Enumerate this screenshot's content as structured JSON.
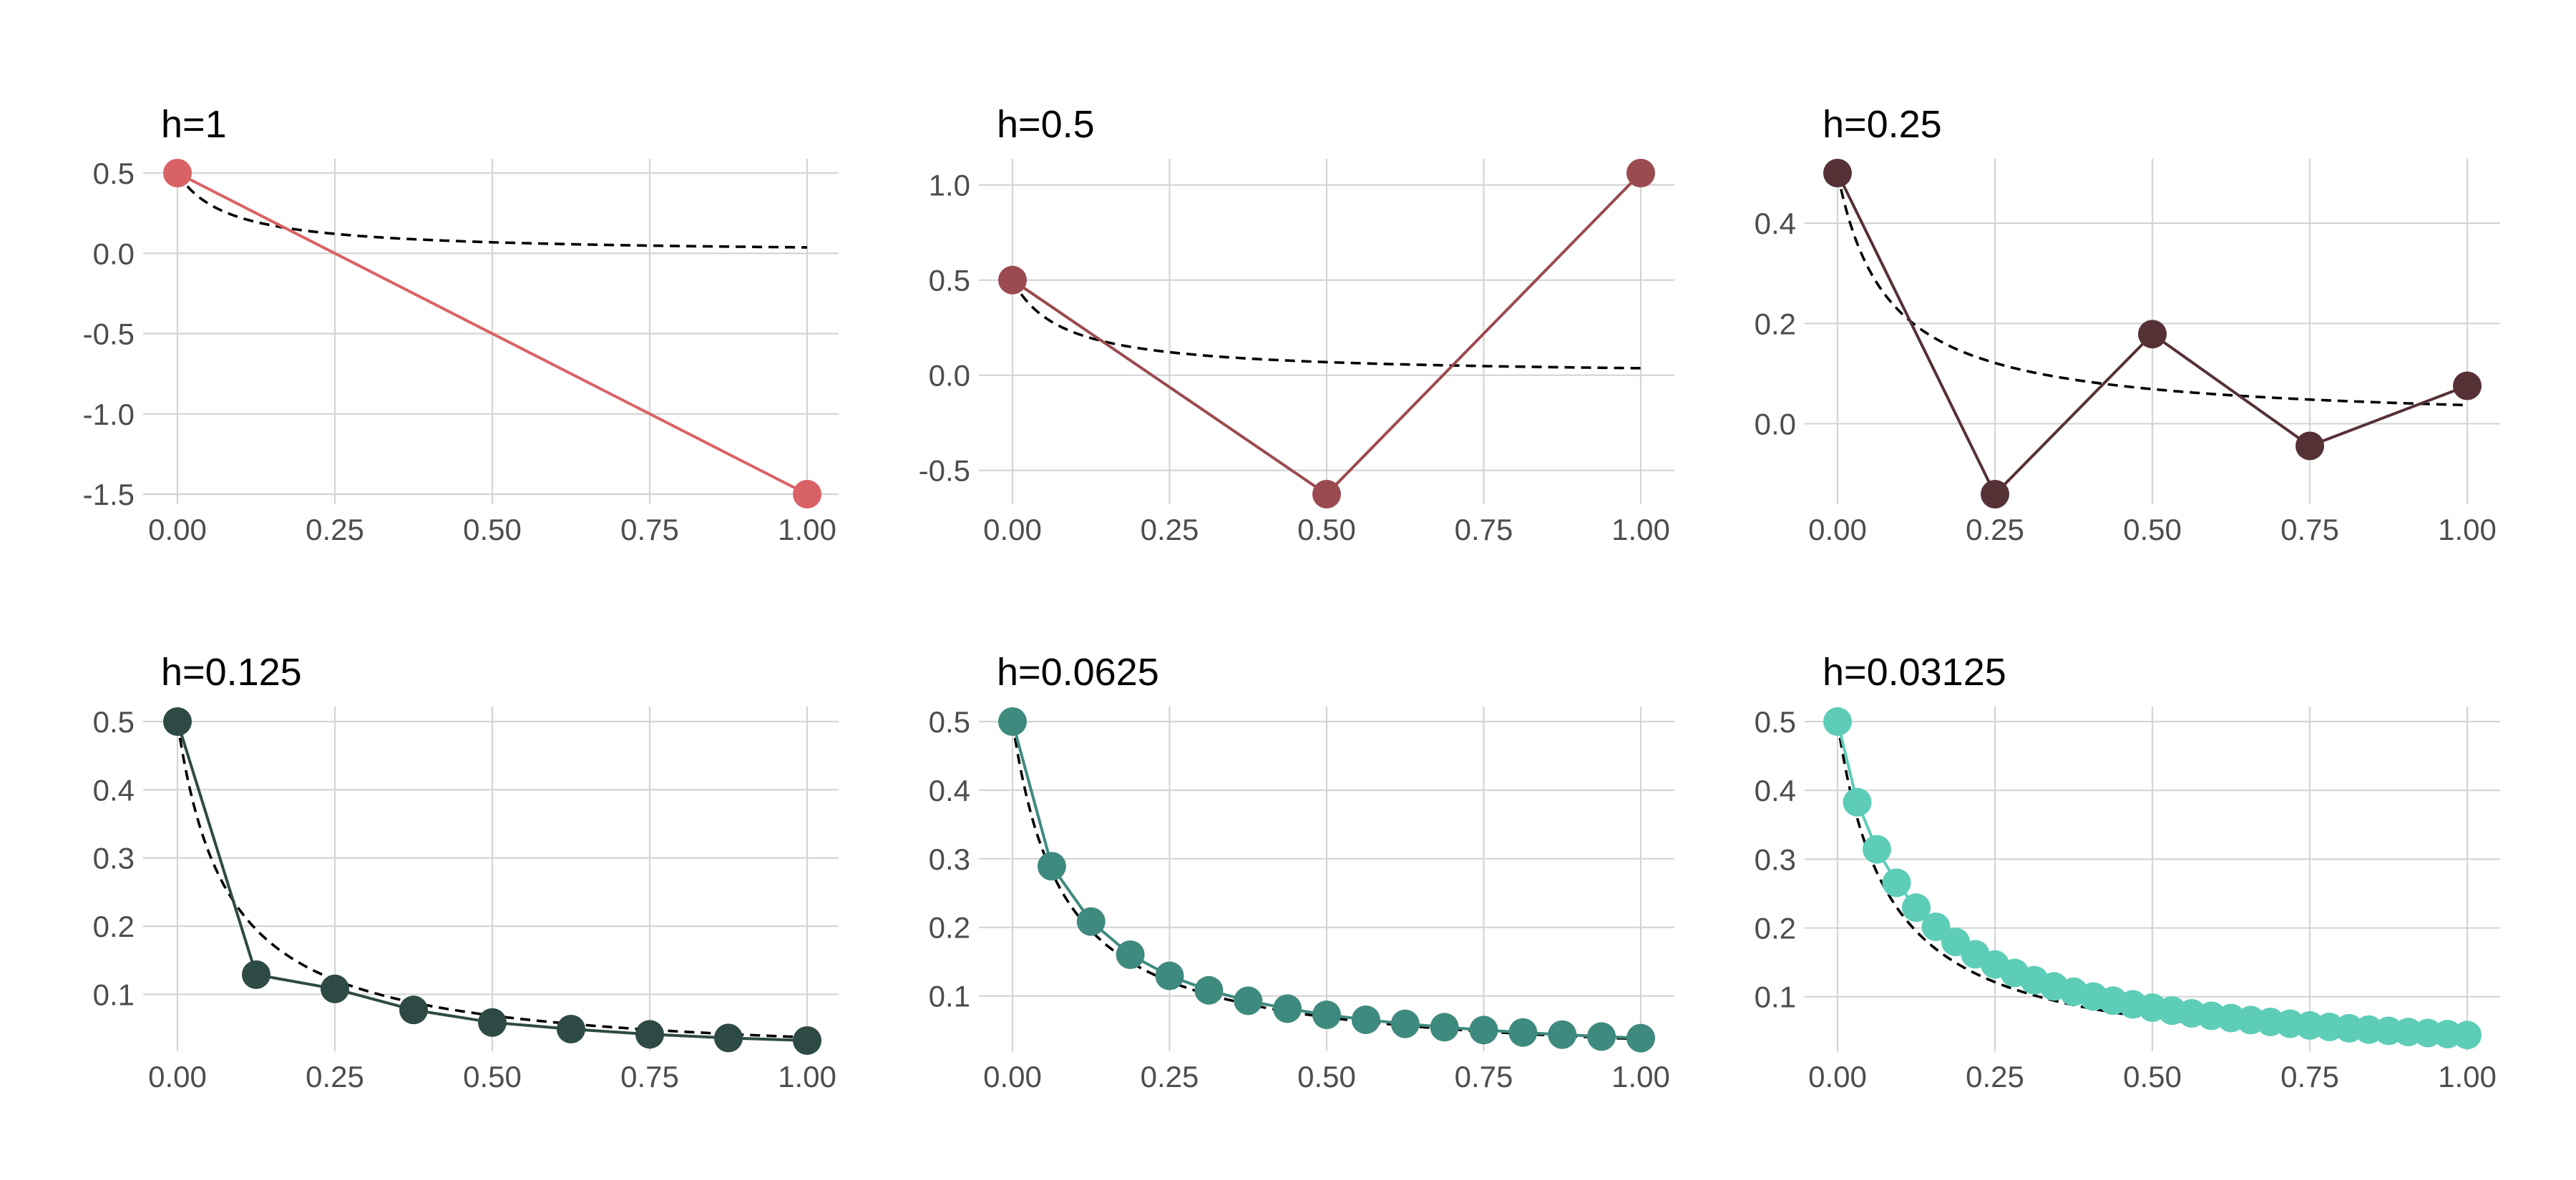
{
  "chart_data": [
    {
      "type": "line",
      "title": "h=1",
      "color": "#d96266",
      "xlim": [
        0,
        1
      ],
      "ylim": [
        -1.5,
        0.5
      ],
      "x_ticks": [
        0,
        0.25,
        0.5,
        0.75,
        1
      ],
      "x_tick_labels": [
        "0.00",
        "0.25",
        "0.50",
        "0.75",
        "1.00"
      ],
      "y_ticks": [
        0.5,
        0,
        -0.5,
        -1,
        -1.5
      ],
      "y_tick_labels": [
        "0.5",
        "0.0",
        "-0.5",
        "-1.0",
        "-1.5"
      ],
      "x": [
        0,
        1
      ],
      "y": [
        0.5,
        -1.5
      ],
      "reference_curve": "y = 1 / (2 + 25x)",
      "grid": true
    },
    {
      "type": "line",
      "title": "h=0.5",
      "color": "#9b4a50",
      "xlim": [
        0,
        1
      ],
      "ylim": [
        -0.625,
        1.0625
      ],
      "x_ticks": [
        0,
        0.25,
        0.5,
        0.75,
        1
      ],
      "x_tick_labels": [
        "0.00",
        "0.25",
        "0.50",
        "0.75",
        "1.00"
      ],
      "y_ticks": [
        1,
        0.5,
        0,
        -0.5
      ],
      "y_tick_labels": [
        "1.0",
        "0.5",
        "0.0",
        "-0.5"
      ],
      "x": [
        0,
        0.5,
        1
      ],
      "y": [
        0.5,
        -0.625,
        1.0625
      ],
      "reference_curve": "y = 1 / (2 + 25x)",
      "grid": true
    },
    {
      "type": "line",
      "title": "h=0.25",
      "color": "#553136",
      "xlim": [
        0,
        1
      ],
      "ylim": [
        -0.1406,
        0.5
      ],
      "x_ticks": [
        0,
        0.25,
        0.5,
        0.75,
        1
      ],
      "x_tick_labels": [
        "0.00",
        "0.25",
        "0.50",
        "0.75",
        "1.00"
      ],
      "y_ticks": [
        0.4,
        0.2,
        0
      ],
      "y_tick_labels": [
        "0.4",
        "0.2",
        "0.0"
      ],
      "x": [
        0,
        0.25,
        0.5,
        0.75,
        1
      ],
      "y": [
        0.5,
        -0.1406,
        0.1787,
        -0.0443,
        0.0755
      ],
      "reference_curve": "y = 1 / (2 + 25x)",
      "grid": true
    },
    {
      "type": "line",
      "title": "h=0.125",
      "color": "#2e4a44",
      "xlim": [
        0,
        1
      ],
      "ylim": [
        0.0323,
        0.5
      ],
      "x_ticks": [
        0,
        0.25,
        0.5,
        0.75,
        1
      ],
      "x_tick_labels": [
        "0.00",
        "0.25",
        "0.50",
        "0.75",
        "1.00"
      ],
      "y_ticks": [
        0.5,
        0.4,
        0.3,
        0.2,
        0.1
      ],
      "y_tick_labels": [
        "0.5",
        "0.4",
        "0.3",
        "0.2",
        "0.1"
      ],
      "x": [
        0,
        0.125,
        0.25,
        0.375,
        0.5,
        0.625,
        0.75,
        0.875,
        1
      ],
      "y": [
        0.5,
        0.1289,
        0.1081,
        0.0772,
        0.0588,
        0.0491,
        0.0414,
        0.0361,
        0.0323
      ],
      "reference_curve": "y = 1 / (2 + 25x)",
      "grid": true
    },
    {
      "type": "line",
      "title": "h=0.0625",
      "color": "#3f8a7e",
      "xlim": [
        0,
        1
      ],
      "ylim": [
        0.035,
        0.5
      ],
      "x_ticks": [
        0,
        0.25,
        0.5,
        0.75,
        1
      ],
      "x_tick_labels": [
        "0.00",
        "0.25",
        "0.50",
        "0.75",
        "1.00"
      ],
      "y_ticks": [
        0.5,
        0.4,
        0.3,
        0.2,
        0.1
      ],
      "y_tick_labels": [
        "0.5",
        "0.4",
        "0.3",
        "0.2",
        "0.1"
      ],
      "x": [
        0,
        0.0625,
        0.125,
        0.1875,
        0.25,
        0.3125,
        0.375,
        0.4375,
        0.5,
        0.5625,
        0.625,
        0.6875,
        0.75,
        0.8125,
        0.875,
        0.9375,
        1
      ],
      "y": [
        0.5,
        0.2891,
        0.2085,
        0.1601,
        0.1293,
        0.1082,
        0.093,
        0.0815,
        0.0725,
        0.0653,
        0.0594,
        0.0545,
        0.0503,
        0.0467,
        0.0436,
        0.0409,
        0.0385
      ],
      "reference_curve": "y = 1 / (2 + 25x)",
      "grid": true
    },
    {
      "type": "line",
      "title": "h=0.03125",
      "color": "#5dcdb8",
      "xlim": [
        0,
        1
      ],
      "ylim": [
        0.0363,
        0.5
      ],
      "x_ticks": [
        0,
        0.25,
        0.5,
        0.75,
        1
      ],
      "x_tick_labels": [
        "0.00",
        "0.25",
        "0.50",
        "0.75",
        "1.00"
      ],
      "y_ticks": [
        0.5,
        0.4,
        0.3,
        0.2,
        0.1
      ],
      "y_tick_labels": [
        "0.5",
        "0.4",
        "0.3",
        "0.2",
        "0.1"
      ],
      "x": [
        0,
        0.03125,
        0.0625,
        0.09375,
        0.125,
        0.15625,
        0.1875,
        0.21875,
        0.25,
        0.28125,
        0.3125,
        0.34375,
        0.375,
        0.40625,
        0.4375,
        0.46875,
        0.5,
        0.53125,
        0.5625,
        0.59375,
        0.625,
        0.65625,
        0.6875,
        0.71875,
        0.75,
        0.78125,
        0.8125,
        0.84375,
        0.875,
        0.90625,
        0.9375,
        0.96875,
        1
      ],
      "y": [
        0.5,
        0.3828,
        0.3143,
        0.2657,
        0.2295,
        0.2016,
        0.1796,
        0.1617,
        0.1469,
        0.1345,
        0.124,
        0.115,
        0.1072,
        0.1003,
        0.0943,
        0.0889,
        0.0841,
        0.0798,
        0.0758,
        0.0723,
        0.069,
        0.066,
        0.0633,
        0.0607,
        0.0583,
        0.0561,
        0.0541,
        0.0522,
        0.0504,
        0.0487,
        0.0472,
        0.0457,
        0.0443
      ],
      "reference_curve": "y = 1 / (2 + 25x)",
      "grid": true
    }
  ]
}
